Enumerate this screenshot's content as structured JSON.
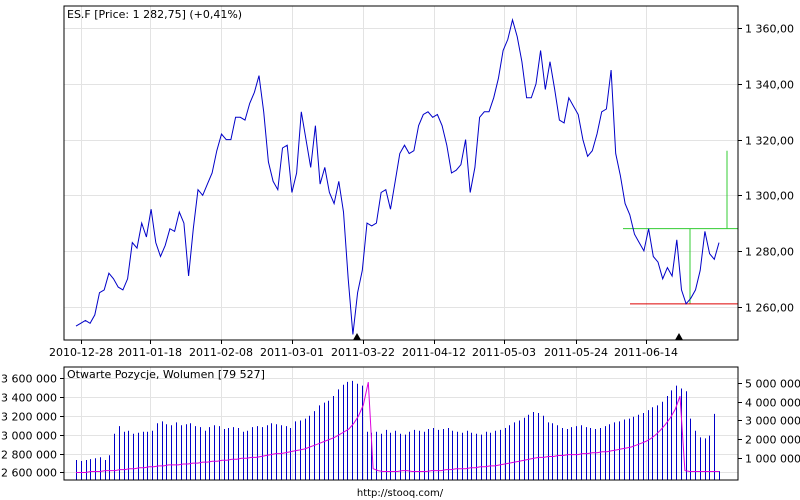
{
  "chart_data": [
    {
      "type": "line",
      "title": "ES.F [Price: 1 282,75] (+0,41%)",
      "x_tick_labels": [
        "2010-12-28",
        "2011-01-18",
        "2011-02-08",
        "2011-03-01",
        "2011-03-22",
        "2011-04-12",
        "2011-05-03",
        "2011-05-24",
        "2011-06-14"
      ],
      "y_tick_labels": [
        "1 260,00",
        "1 280,00",
        "1 300,00",
        "1 320,00",
        "1 340,00",
        "1 360,00"
      ],
      "ylim": [
        1248,
        1368
      ],
      "grid": true,
      "series": [
        {
          "color": "#0000c8",
          "values": [
            1253,
            1254,
            1255,
            1254,
            1257,
            1265,
            1266,
            1272,
            1270,
            1267,
            1266,
            1270,
            1283,
            1281,
            1290,
            1285,
            1295,
            1283,
            1278,
            1282,
            1288,
            1287,
            1294,
            1290,
            1271,
            1288,
            1302,
            1300,
            1304,
            1308,
            1316,
            1322,
            1320,
            1320,
            1328,
            1328,
            1327,
            1333,
            1337,
            1343,
            1330,
            1312,
            1305,
            1302,
            1317,
            1318,
            1301,
            1308,
            1330,
            1320,
            1310,
            1325,
            1304,
            1310,
            1301,
            1297,
            1305,
            1294,
            1270,
            1250,
            1265,
            1273,
            1290,
            1289,
            1290,
            1301,
            1302,
            1295,
            1305,
            1315,
            1318,
            1315,
            1316,
            1325,
            1329,
            1330,
            1328,
            1329,
            1325,
            1318,
            1308,
            1309,
            1311,
            1320,
            1301,
            1310,
            1328,
            1330,
            1330,
            1335,
            1342,
            1352,
            1356,
            1363,
            1357,
            1348,
            1335,
            1335,
            1340,
            1352,
            1338,
            1348,
            1338,
            1327,
            1326,
            1335,
            1332,
            1329,
            1320,
            1314,
            1316,
            1322,
            1330,
            1331,
            1345,
            1315,
            1307,
            1297,
            1293,
            1286,
            1283,
            1280,
            1288,
            1278,
            1276,
            1270,
            1274,
            1271,
            1284,
            1266,
            1261,
            1263,
            1266,
            1273,
            1287,
            1279,
            1277,
            1283
          ]
        }
      ],
      "annotations": {
        "green_level": 1288,
        "green_target": 1316,
        "red_level": 1261,
        "markers_at_x": [
          "2011-03-14",
          "2011-06-13"
        ]
      }
    },
    {
      "type": "bar",
      "title": "Otwarte Pozycje, Wolumen [79 527]",
      "left_tick_labels": [
        "2 600 000",
        "2 800 000",
        "3 000 000",
        "3 200 000",
        "3 400 000",
        "3 600 000"
      ],
      "right_tick_labels": [
        "1 000 000",
        "2 000 000",
        "3 000 000",
        "4 000 000",
        "5 000 000"
      ],
      "left_ylim": [
        2520000,
        3720000
      ],
      "right_ylim": [
        -160000,
        5840000
      ],
      "grid": true,
      "series": [
        {
          "name": "Wolumen",
          "color": "#0000c8",
          "values": [
            900000,
            850000,
            900000,
            950000,
            1000000,
            1050000,
            900000,
            1150000,
            2300000,
            2700000,
            2400000,
            2450000,
            2300000,
            2350000,
            2400000,
            2400000,
            2450000,
            2850000,
            2950000,
            2800000,
            2750000,
            2900000,
            2750000,
            2800000,
            2850000,
            2700000,
            2650000,
            2450000,
            2650000,
            2750000,
            2700000,
            2550000,
            2600000,
            2650000,
            2600000,
            2400000,
            2450000,
            2650000,
            2700000,
            2650000,
            2750000,
            2850000,
            2800000,
            2750000,
            2700000,
            2600000,
            2950000,
            3000000,
            3100000,
            3250000,
            3500000,
            3800000,
            3950000,
            4050000,
            4300000,
            4650000,
            4900000,
            5050000,
            5100000,
            4950000,
            4850000,
            2400000,
            2350000,
            2400000,
            2300000,
            2500000,
            2350000,
            2450000,
            2300000,
            2250000,
            2400000,
            2500000,
            2450000,
            2400000,
            2550000,
            2600000,
            2500000,
            2550000,
            2600000,
            2450000,
            2400000,
            2350000,
            2450000,
            2350000,
            2300000,
            2250000,
            2400000,
            2350000,
            2450000,
            2500000,
            2600000,
            2750000,
            2900000,
            3000000,
            3150000,
            3300000,
            3450000,
            3400000,
            3250000,
            2900000,
            2850000,
            2750000,
            2600000,
            2550000,
            2650000,
            2700000,
            2750000,
            2650000,
            2600000,
            2550000,
            2600000,
            2700000,
            2800000,
            2900000,
            2950000,
            3050000,
            3100000,
            3200000,
            3300000,
            3400000,
            3550000,
            3700000,
            3800000,
            4000000,
            4300000,
            4600000,
            4850000,
            4700000,
            4550000,
            3100000,
            2450000,
            2100000,
            2050000,
            2200000,
            3350000,
            300000
          ]
        },
        {
          "name": "Otwarte Pozycje",
          "color": "#dd00dd",
          "values": [
            2600000,
            2600000,
            2600000,
            2610000,
            2610000,
            2610000,
            2620000,
            2620000,
            2620000,
            2630000,
            2630000,
            2640000,
            2640000,
            2650000,
            2650000,
            2660000,
            2660000,
            2670000,
            2670000,
            2680000,
            2680000,
            2680000,
            2690000,
            2690000,
            2700000,
            2700000,
            2710000,
            2710000,
            2720000,
            2720000,
            2730000,
            2730000,
            2740000,
            2740000,
            2750000,
            2750000,
            2760000,
            2760000,
            2770000,
            2780000,
            2790000,
            2800000,
            2800000,
            2810000,
            2820000,
            2830000,
            2840000,
            2850000,
            2870000,
            2890000,
            2910000,
            2930000,
            2950000,
            2970000,
            3000000,
            3030000,
            3060000,
            3120000,
            3200000,
            3320000,
            3560000,
            2640000,
            2620000,
            2610000,
            2610000,
            2610000,
            2610000,
            2620000,
            2620000,
            2610000,
            2610000,
            2610000,
            2610000,
            2620000,
            2620000,
            2620000,
            2630000,
            2630000,
            2640000,
            2640000,
            2640000,
            2650000,
            2650000,
            2660000,
            2660000,
            2670000,
            2670000,
            2680000,
            2690000,
            2700000,
            2710000,
            2720000,
            2730000,
            2740000,
            2750000,
            2760000,
            2760000,
            2770000,
            2770000,
            2780000,
            2780000,
            2790000,
            2790000,
            2790000,
            2800000,
            2800000,
            2810000,
            2810000,
            2820000,
            2820000,
            2830000,
            2840000,
            2850000,
            2860000,
            2870000,
            2890000,
            2910000,
            2930000,
            2960000,
            3000000,
            3050000,
            3110000,
            3180000,
            3270000,
            3410000,
            2620000,
            2610000,
            2610000,
            2610000,
            2610000,
            2610000,
            2610000,
            2610000
          ]
        }
      ]
    }
  ],
  "footer": {
    "source": "http://stooq.com/"
  }
}
